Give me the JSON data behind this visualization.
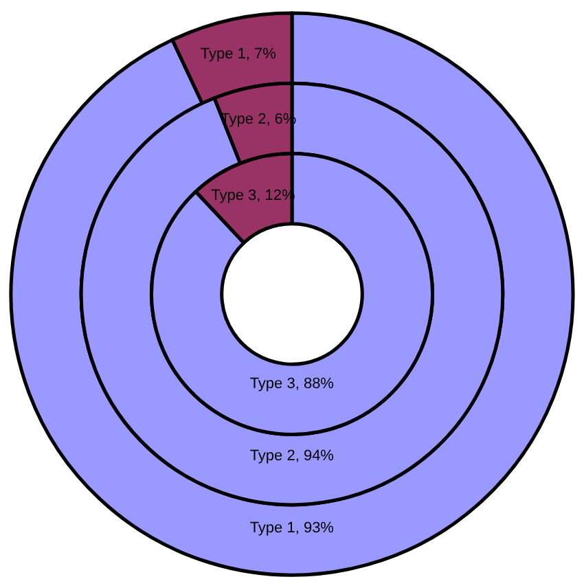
{
  "chart_data": [
    {
      "type": "donut",
      "categories": [
        null,
        null
      ],
      "colors": [
        "#9999ff",
        "#993366"
      ],
      "values": [
        93,
        7
      ],
      "value_labels": [
        "Type 1, 93%",
        "Type 1, 7%"
      ]
    },
    {
      "type": "donut",
      "categories": [
        null,
        null
      ],
      "colors": [
        "#9999ff",
        "#993366"
      ],
      "values": [
        94,
        6
      ],
      "value_labels": [
        "Type 2, 94%",
        "Type 2, 6%"
      ]
    },
    {
      "type": "donut",
      "categories": [
        null,
        null
      ],
      "colors": [
        "#9999ff",
        "#993366"
      ],
      "values": [
        88,
        12
      ],
      "value_labels": [
        "Type 3, 88%",
        "Type 3, 12%"
      ]
    }
  ]
}
